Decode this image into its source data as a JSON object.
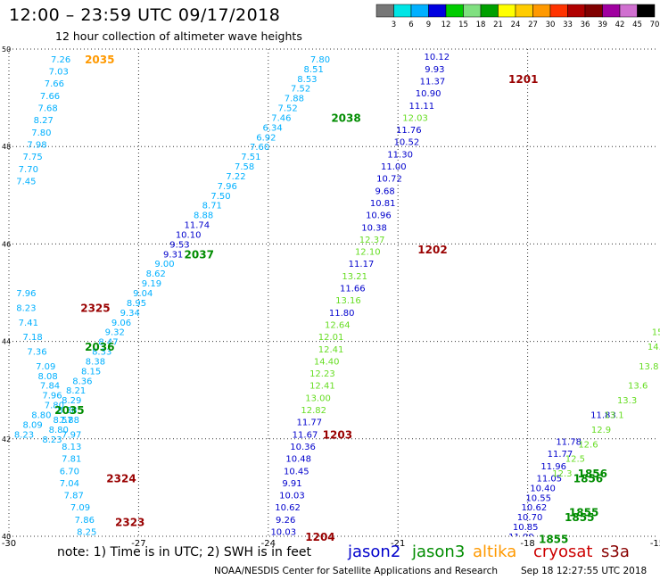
{
  "title": "12:00 – 23:59 UTC 09/17/2018",
  "subtitle": "12 hour collection of altimeter wave heights",
  "note": "note:  1) Time is in UTC;  2) SWH is in feet",
  "credit": "NOAA/NESDIS Center for Satellite Applications and Research",
  "timestamp": "Sep 18 12:27:55 UTC 2018",
  "legend_satellites": [
    {
      "name": "jason2",
      "color": "#0000cc"
    },
    {
      "name": "jason3",
      "color": "#008c00"
    },
    {
      "name": "altika",
      "color": "#ff9900"
    },
    {
      "name": "cryosat",
      "color": "#cc0000"
    },
    {
      "name": "s3a",
      "color": "#880000"
    }
  ],
  "colorbar": {
    "labels": [
      "3",
      "6",
      "9",
      "12",
      "15",
      "18",
      "21",
      "24",
      "27",
      "30",
      "33",
      "36",
      "39",
      "42",
      "45",
      "70",
      "(ft)"
    ],
    "colors": [
      "#777777",
      "#00e5e5",
      "#00b0ff",
      "#0000e0",
      "#00cc00",
      "#80e080",
      "#00a000",
      "#ffff00",
      "#ffcc00",
      "#ff9900",
      "#ff3300",
      "#b00000",
      "#800000",
      "#a000a0",
      "#d070d0",
      "#000000"
    ]
  },
  "chart_data": {
    "type": "scatter",
    "title": "12:00 – 23:59 UTC 09/17/2018",
    "subtitle": "12 hour collection of altimeter wave heights",
    "xlabel": "",
    "ylabel": "",
    "xlim": [
      -30,
      -15
    ],
    "ylim": [
      40,
      50
    ],
    "xticks": [
      -30,
      -27,
      -24,
      -21,
      -18,
      -15
    ],
    "yticks": [
      40,
      42,
      44,
      46,
      48,
      50
    ],
    "grid": true,
    "colors": {
      "cyan": "#00b0ff",
      "blue": "#0000cc",
      "ltgreen": "#66dd22",
      "green": "#008c00",
      "orange": "#ff9900",
      "dred": "#990000"
    },
    "tracks": [
      {
        "color": "cyan",
        "points": [
          [
            -28.8,
            49.8,
            "7.26"
          ],
          [
            -28.85,
            49.55,
            "7.03"
          ],
          [
            -28.95,
            49.3,
            "7.66"
          ],
          [
            -29.05,
            49.05,
            "7.66"
          ],
          [
            -29.1,
            48.8,
            "7.68"
          ],
          [
            -29.2,
            48.55,
            "8.27"
          ],
          [
            -29.25,
            48.3,
            "7.80"
          ],
          [
            -29.35,
            48.05,
            "7.98"
          ],
          [
            -29.45,
            47.8,
            "7.75"
          ],
          [
            -29.55,
            47.55,
            "7.70"
          ],
          [
            -29.6,
            47.3,
            "7.45"
          ]
        ]
      },
      {
        "color": "cyan",
        "points": [
          [
            -22.8,
            49.8,
            "7.80"
          ],
          [
            -22.95,
            49.6,
            "8.51"
          ],
          [
            -23.1,
            49.4,
            "8.53"
          ],
          [
            -23.25,
            49.2,
            "7.52"
          ],
          [
            -23.4,
            49.0,
            "7.88"
          ],
          [
            -23.55,
            48.8,
            "7.52"
          ],
          [
            -23.7,
            48.6,
            "7.46"
          ],
          [
            -23.9,
            48.4,
            "6.34"
          ],
          [
            -24.05,
            48.2,
            "6.92"
          ],
          [
            -24.2,
            48.0,
            "7.60"
          ],
          [
            -24.4,
            47.8,
            "7.51"
          ],
          [
            -24.55,
            47.6,
            "7.58"
          ],
          [
            -24.75,
            47.4,
            "7.22"
          ],
          [
            -24.95,
            47.2,
            "7.96"
          ],
          [
            -25.1,
            47.0,
            "7.50"
          ],
          [
            -25.3,
            46.8,
            "8.71"
          ],
          [
            -25.5,
            46.6,
            "8.88"
          ]
        ]
      },
      {
        "color": "blue",
        "points": [
          [
            -25.65,
            46.4,
            "11.74"
          ],
          [
            -25.85,
            46.2,
            "10.10"
          ],
          [
            -26.05,
            46.0,
            "9.53"
          ],
          [
            -26.2,
            45.8,
            "9.31"
          ]
        ]
      },
      {
        "color": "cyan",
        "points": [
          [
            -26.4,
            45.6,
            "9.00"
          ],
          [
            -26.6,
            45.4,
            "8.62"
          ],
          [
            -26.7,
            45.2,
            "9.19"
          ],
          [
            -26.9,
            45.0,
            "9.04"
          ],
          [
            -27.05,
            44.8,
            "8.95"
          ],
          [
            -27.2,
            44.6,
            "9.34"
          ],
          [
            -27.4,
            44.4,
            "9.06"
          ],
          [
            -27.55,
            44.2,
            "9.32"
          ],
          [
            -27.7,
            44.0,
            "8.47"
          ],
          [
            -27.85,
            43.8,
            "8.33"
          ],
          [
            -28.0,
            43.6,
            "8.38"
          ],
          [
            -28.1,
            43.4,
            "8.15"
          ],
          [
            -28.3,
            43.2,
            "8.36"
          ],
          [
            -28.45,
            43.0,
            "8.21"
          ],
          [
            -28.55,
            42.8,
            "8.29"
          ],
          [
            -28.65,
            42.6,
            "8.38"
          ],
          [
            -28.75,
            42.4,
            "8.57"
          ],
          [
            -28.85,
            42.2,
            "8.80"
          ],
          [
            -29.0,
            42.0,
            "8.23"
          ]
        ]
      },
      {
        "color": "cyan",
        "points": [
          [
            -29.6,
            45.0,
            "7.96"
          ],
          [
            -29.6,
            44.7,
            "8.23"
          ],
          [
            -29.55,
            44.4,
            "7.41"
          ],
          [
            -29.45,
            44.1,
            "7.18"
          ],
          [
            -29.35,
            43.8,
            "7.36"
          ],
          [
            -29.15,
            43.5,
            "7.09"
          ],
          [
            -29.1,
            43.3,
            "8.08"
          ],
          [
            -29.05,
            43.1,
            "7.84"
          ],
          [
            -29.0,
            42.9,
            "7.96"
          ],
          [
            -28.95,
            42.7,
            "7.80"
          ],
          [
            -29.25,
            42.5,
            "8.80"
          ],
          [
            -29.45,
            42.3,
            "8.09"
          ],
          [
            -29.65,
            42.1,
            "8.23"
          ]
        ]
      },
      {
        "color": "cyan",
        "points": [
          [
            -28.6,
            42.4,
            "7.88"
          ],
          [
            -28.55,
            42.1,
            "7.97"
          ],
          [
            -28.55,
            41.85,
            "8.13"
          ],
          [
            -28.55,
            41.6,
            "7.81"
          ],
          [
            -28.6,
            41.35,
            "6.70"
          ],
          [
            -28.6,
            41.1,
            "7.04"
          ],
          [
            -28.5,
            40.85,
            "7.87"
          ],
          [
            -28.35,
            40.6,
            "7.09"
          ],
          [
            -28.25,
            40.35,
            "7.86"
          ],
          [
            -28.2,
            40.1,
            "8.25"
          ],
          [
            -28.1,
            39.85,
            "7.21"
          ],
          [
            -28.0,
            39.6,
            "6.82"
          ],
          [
            -27.95,
            39.35,
            "6.99"
          ]
        ]
      },
      {
        "color": "blue",
        "points": [
          [
            -20.1,
            49.85,
            "10.12"
          ],
          [
            -20.15,
            49.6,
            "9.93"
          ],
          [
            -20.2,
            49.35,
            "11.37"
          ],
          [
            -20.3,
            49.1,
            "10.90"
          ],
          [
            -20.45,
            48.85,
            "11.11"
          ]
        ]
      },
      {
        "color": "ltgreen",
        "points": [
          [
            -20.6,
            48.6,
            "12.03"
          ]
        ]
      },
      {
        "color": "blue",
        "points": [
          [
            -20.75,
            48.35,
            "11.76"
          ],
          [
            -20.8,
            48.1,
            "10.52"
          ],
          [
            -20.95,
            47.85,
            "11.30"
          ],
          [
            -21.1,
            47.6,
            "11.00"
          ],
          [
            -21.2,
            47.35,
            "10.72"
          ],
          [
            -21.3,
            47.1,
            "9.68"
          ],
          [
            -21.35,
            46.85,
            "10.81"
          ],
          [
            -21.45,
            46.6,
            "10.96"
          ],
          [
            -21.55,
            46.35,
            "10.38"
          ]
        ]
      },
      {
        "color": "ltgreen",
        "points": [
          [
            -21.6,
            46.1,
            "12.37"
          ],
          [
            -21.7,
            45.85,
            "12.10"
          ]
        ]
      },
      {
        "color": "blue",
        "points": [
          [
            -21.85,
            45.6,
            "11.17"
          ]
        ]
      },
      {
        "color": "ltgreen",
        "points": [
          [
            -22.0,
            45.35,
            "13.21"
          ]
        ]
      },
      {
        "color": "blue",
        "points": [
          [
            -22.05,
            45.1,
            "11.66"
          ]
        ]
      },
      {
        "color": "ltgreen",
        "points": [
          [
            -22.15,
            44.85,
            "13.16"
          ]
        ]
      },
      {
        "color": "blue",
        "points": [
          [
            -22.3,
            44.6,
            "11.80"
          ]
        ]
      },
      {
        "color": "ltgreen",
        "points": [
          [
            -22.4,
            44.35,
            "12.64"
          ],
          [
            -22.55,
            44.1,
            "12.01"
          ],
          [
            -22.55,
            43.85,
            "12.41"
          ],
          [
            -22.65,
            43.6,
            "14.40"
          ],
          [
            -22.75,
            43.35,
            "12.23"
          ],
          [
            -22.75,
            43.1,
            "12.41"
          ],
          [
            -22.85,
            42.85,
            "13.00"
          ],
          [
            -22.95,
            42.6,
            "12.82"
          ]
        ]
      },
      {
        "color": "blue",
        "points": [
          [
            -23.05,
            42.35,
            "11.77"
          ],
          [
            -23.15,
            42.1,
            "11.67"
          ],
          [
            -23.2,
            41.85,
            "10.36"
          ],
          [
            -23.3,
            41.6,
            "10.48"
          ],
          [
            -23.35,
            41.35,
            "10.45"
          ],
          [
            -23.45,
            41.1,
            "9.91"
          ],
          [
            -23.45,
            40.85,
            "10.03"
          ],
          [
            -23.55,
            40.6,
            "10.62"
          ],
          [
            -23.6,
            40.35,
            "9.26"
          ],
          [
            -23.65,
            40.1,
            "10.03"
          ],
          [
            -23.7,
            39.85,
            "9.93"
          ],
          [
            -23.75,
            39.6,
            "9.14"
          ],
          [
            -23.85,
            39.35,
            "9.26"
          ],
          [
            -23.85,
            39.1,
            "9.77"
          ]
        ]
      },
      {
        "color": "blue",
        "points": [
          [
            -18.4,
            39.3,
            "9.93"
          ],
          [
            -18.35,
            39.55,
            "10.11"
          ],
          [
            -18.25,
            39.8,
            "11.11"
          ],
          [
            -18.15,
            40.0,
            "11.00"
          ],
          [
            -18.05,
            40.2,
            "10.85"
          ],
          [
            -17.95,
            40.4,
            "10.70"
          ],
          [
            -17.85,
            40.6,
            "10.62"
          ],
          [
            -17.75,
            40.8,
            "10.55"
          ],
          [
            -17.65,
            41.0,
            "10.40"
          ],
          [
            -17.5,
            41.2,
            "11.05"
          ],
          [
            -17.4,
            41.45,
            "11.96"
          ],
          [
            -17.25,
            41.7,
            "11.77"
          ],
          [
            -17.05,
            41.95,
            "11.78"
          ],
          [
            -16.25,
            42.5,
            "11.83"
          ]
        ]
      },
      {
        "color": "ltgreen",
        "points": [
          [
            -17.2,
            41.3,
            "12.3"
          ],
          [
            -16.9,
            41.6,
            "12.5"
          ],
          [
            -16.6,
            41.9,
            "12.6"
          ],
          [
            -16.3,
            42.2,
            "12.9"
          ],
          [
            -16.0,
            42.5,
            "13.1"
          ],
          [
            -15.7,
            42.8,
            "13.3"
          ],
          [
            -15.45,
            43.1,
            "13.6"
          ],
          [
            -15.2,
            43.5,
            "13.8"
          ],
          [
            -15.0,
            43.9,
            "14.0"
          ],
          [
            -14.9,
            44.2,
            "15.2"
          ]
        ]
      }
    ],
    "pass_labels": [
      {
        "x": -27.9,
        "y": 49.8,
        "text": "2035",
        "color": "orange"
      },
      {
        "x": -22.2,
        "y": 48.6,
        "text": "2038",
        "color": "green"
      },
      {
        "x": -25.6,
        "y": 45.8,
        "text": "2037",
        "color": "green"
      },
      {
        "x": -28.0,
        "y": 44.7,
        "text": "2325",
        "color": "dred"
      },
      {
        "x": -27.9,
        "y": 43.9,
        "text": "2036",
        "color": "green"
      },
      {
        "x": -28.6,
        "y": 42.6,
        "text": "2035",
        "color": "green"
      },
      {
        "x": -27.4,
        "y": 41.2,
        "text": "2324",
        "color": "dred"
      },
      {
        "x": -27.2,
        "y": 40.3,
        "text": "2323",
        "color": "dred"
      },
      {
        "x": -18.1,
        "y": 49.4,
        "text": "1201",
        "color": "dred"
      },
      {
        "x": -20.2,
        "y": 45.9,
        "text": "1202",
        "color": "dred"
      },
      {
        "x": -22.4,
        "y": 42.1,
        "text": "1203",
        "color": "dred"
      },
      {
        "x": -22.8,
        "y": 40.0,
        "text": "1204",
        "color": "dred"
      },
      {
        "x": -16.5,
        "y": 41.3,
        "text": "1856",
        "color": "green"
      },
      {
        "x": -16.6,
        "y": 41.2,
        "text": "1856",
        "color": "green"
      },
      {
        "x": -16.7,
        "y": 40.5,
        "text": "1855",
        "color": "green"
      },
      {
        "x": -16.8,
        "y": 40.4,
        "text": "1855",
        "color": "green"
      },
      {
        "x": -17.4,
        "y": 39.95,
        "text": "1855",
        "color": "green"
      }
    ]
  }
}
